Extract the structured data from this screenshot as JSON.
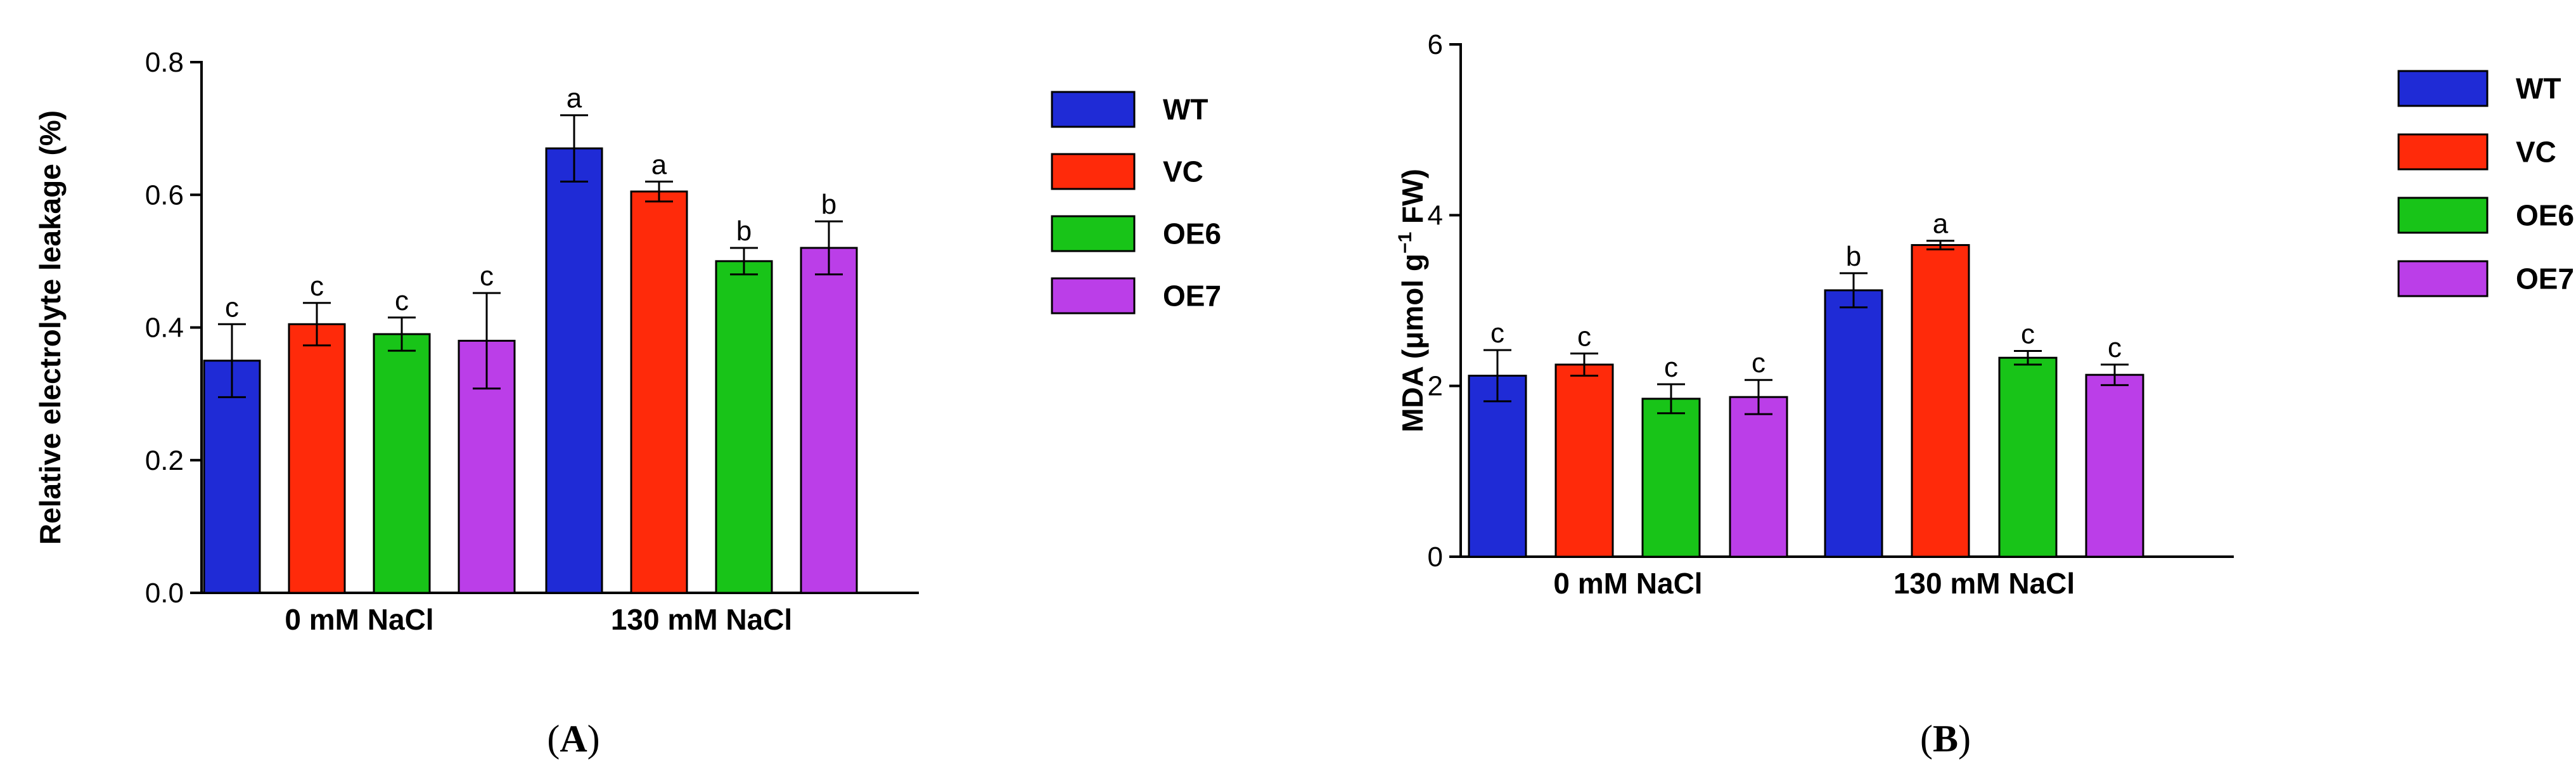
{
  "chart_data": [
    {
      "type": "bar",
      "panel_label": "(A)",
      "panel_letter": "A",
      "ylabel": "Relative electrolyte leakage (%)",
      "ylim": [
        0,
        0.8
      ],
      "yticks": [
        "0.0",
        "0.2",
        "0.4",
        "0.6",
        "0.8"
      ],
      "ytick_values": [
        0,
        0.2,
        0.4,
        0.6,
        0.8
      ],
      "categories": [
        "0 mM NaCl",
        "130 mM NaCl"
      ],
      "legend_position": "right",
      "series": [
        {
          "name": "WT",
          "color": "#1f2bd6",
          "values": [
            0.35,
            0.67
          ],
          "errors": [
            0.055,
            0.05
          ],
          "letters": [
            "c",
            "a"
          ]
        },
        {
          "name": "VC",
          "color": "#ff2a0a",
          "values": [
            0.405,
            0.605
          ],
          "errors": [
            0.032,
            0.015
          ],
          "letters": [
            "c",
            "a"
          ]
        },
        {
          "name": "OE6",
          "color": "#18c418",
          "values": [
            0.39,
            0.5
          ],
          "errors": [
            0.025,
            0.02
          ],
          "letters": [
            "c",
            "b"
          ]
        },
        {
          "name": "OE7",
          "color": "#bb3ee8",
          "values": [
            0.38,
            0.52
          ],
          "errors": [
            0.072,
            0.04
          ],
          "letters": [
            "c",
            "b"
          ]
        }
      ]
    },
    {
      "type": "bar",
      "panel_label": "(B)",
      "panel_letter": "B",
      "ylabel_main": "MDA (μmol g",
      "ylabel_sup": "−1",
      "ylabel_tail": " FW)",
      "ylim": [
        0,
        6
      ],
      "yticks": [
        "0",
        "2",
        "4",
        "6"
      ],
      "ytick_values": [
        0,
        2,
        4,
        6
      ],
      "categories": [
        "0 mM NaCl",
        "130 mM NaCl"
      ],
      "legend_position": "right",
      "series": [
        {
          "name": "WT",
          "color": "#1f2bd6",
          "values": [
            2.12,
            3.12
          ],
          "errors": [
            0.3,
            0.2
          ],
          "letters": [
            "c",
            "b"
          ]
        },
        {
          "name": "VC",
          "color": "#ff2a0a",
          "values": [
            2.25,
            3.65
          ],
          "errors": [
            0.13,
            0.05
          ],
          "letters": [
            "c",
            "a"
          ]
        },
        {
          "name": "OE6",
          "color": "#18c418",
          "values": [
            1.85,
            2.33
          ],
          "errors": [
            0.17,
            0.08
          ],
          "letters": [
            "c",
            "c"
          ]
        },
        {
          "name": "OE7",
          "color": "#bb3ee8",
          "values": [
            1.87,
            2.13
          ],
          "errors": [
            0.2,
            0.12
          ],
          "letters": [
            "c",
            "c"
          ]
        }
      ]
    }
  ]
}
